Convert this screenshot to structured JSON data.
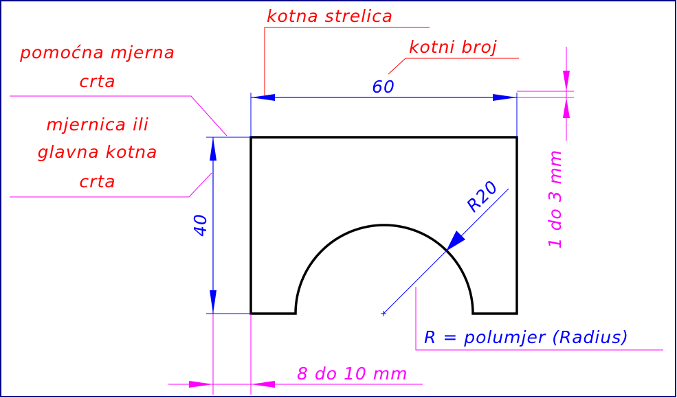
{
  "labels": {
    "kotna_strelica": "kotna strelica",
    "kotni_broj": "kotni broj",
    "pomocna_line1": "pomoćna mjerna",
    "pomocna_line2": "crta",
    "mjernica_line1": "mjernica ili",
    "mjernica_line2": "glavna kotna",
    "mjernica_line3": "crta",
    "radius_legend_prefix": "R = polumjer (",
    "radius_legend_word": "Radius",
    "radius_legend_suffix": ")",
    "spacing_note": "8 do 10 mm",
    "arrow_gap_note": "1 do 3 mm"
  },
  "dimensions": {
    "width_value": "60",
    "height_value": "40",
    "radius_value": "R20"
  },
  "colors": {
    "callout": "#ff0000",
    "dimension": "#0000ff",
    "annotation": "#ff00ff",
    "part_outline": "#000000",
    "frame": "#00008b"
  }
}
